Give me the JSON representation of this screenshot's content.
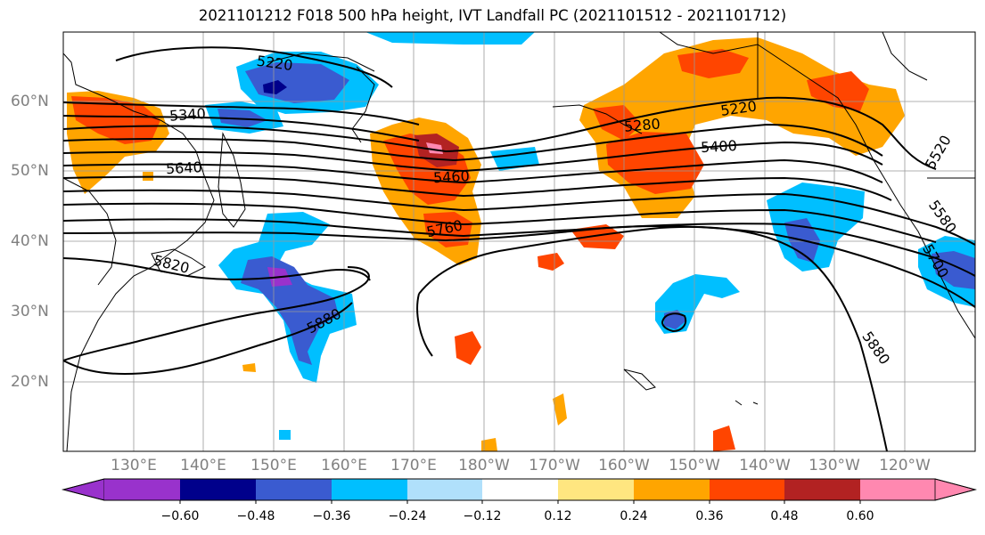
{
  "title": "2021101212 F018 500 hPa height, IVT Landfall PC (2021101512 - 2021101712)",
  "lat_labels": [
    "60°N",
    "50°N",
    "40°N",
    "30°N",
    "20°N"
  ],
  "lon_labels": [
    "130°E",
    "140°E",
    "150°E",
    "160°E",
    "170°E",
    "180°W",
    "170°W",
    "160°W",
    "150°W",
    "140°W",
    "130°W",
    "120°W"
  ],
  "contour_labels": [
    "5220",
    "5340",
    "5640",
    "5460",
    "5760",
    "5820",
    "5880",
    "5280",
    "5220",
    "5400",
    "5520",
    "5580",
    "5700",
    "5880"
  ],
  "colorbar": {
    "tick_labels": [
      "−0.60",
      "−0.48",
      "−0.36",
      "−0.24",
      "−0.12",
      "0.12",
      "0.24",
      "0.36",
      "0.48",
      "0.60"
    ],
    "colors": [
      "#9932cc",
      "#00008b",
      "#3a5bd0",
      "#00bfff",
      "#b0e0fb",
      "#ffffff",
      "#ffe680",
      "#ffa500",
      "#ff4500",
      "#b22222",
      "#ff88b0"
    ]
  }
}
